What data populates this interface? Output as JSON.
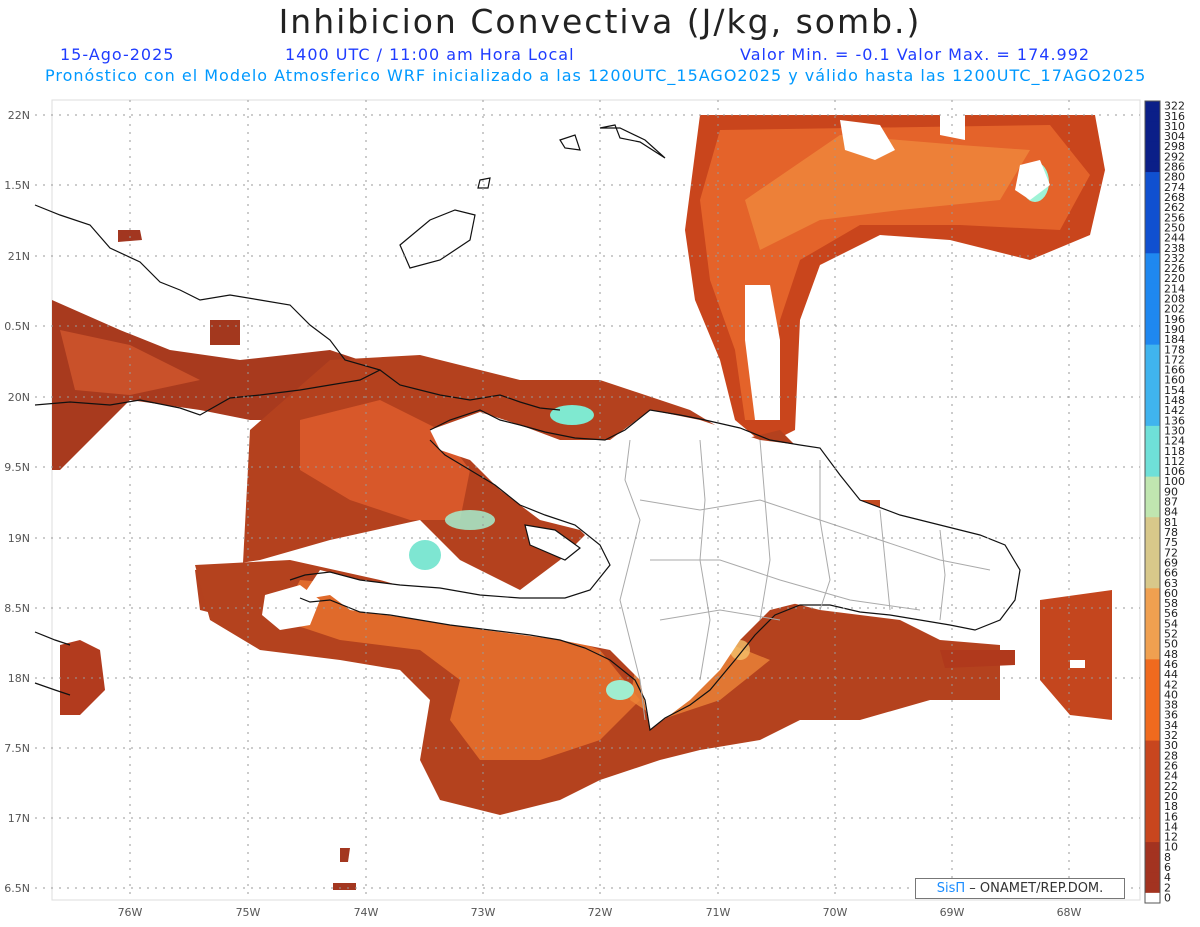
{
  "header": {
    "title": "Inhibicion Convectiva (J/kg, somb.)",
    "date": "15-Ago-2025",
    "time": "1400 UTC / 11:00 am Hora Local",
    "minmax": "Valor Min. = -0.1  Valor Max. = 174.992",
    "description": "Pronóstico con el Modelo Atmosferico WRF inicializado a las 1200UTC_15AGO2025 y válido hasta las  1200UTC_17AGO2025"
  },
  "map": {
    "lon_labels": [
      "76W",
      "75W",
      "74W",
      "73W",
      "72W",
      "71W",
      "70W",
      "69W",
      "68W"
    ],
    "lat_labels": [
      "22N",
      "1.5N",
      "21N",
      "0.5N",
      "20N",
      "9.5N",
      "19N",
      "8.5N",
      "18N",
      "7.5N",
      "17N",
      "6.5N"
    ]
  },
  "colorbar": {
    "levels": [
      "322",
      "316",
      "310",
      "304",
      "298",
      "292",
      "286",
      "280",
      "274",
      "268",
      "262",
      "256",
      "250",
      "244",
      "238",
      "232",
      "226",
      "220",
      "214",
      "208",
      "202",
      "196",
      "190",
      "184",
      "178",
      "172",
      "166",
      "160",
      "154",
      "148",
      "142",
      "136",
      "130",
      "124",
      "118",
      "112",
      "106",
      "100",
      "90",
      "87",
      "84",
      "81",
      "78",
      "75",
      "72",
      "69",
      "66",
      "63",
      "60",
      "58",
      "56",
      "54",
      "52",
      "50",
      "48",
      "46",
      "44",
      "42",
      "40",
      "38",
      "36",
      "34",
      "32",
      "30",
      "28",
      "26",
      "24",
      "22",
      "20",
      "18",
      "16",
      "14",
      "12",
      "10",
      "8",
      "6",
      "4",
      "2",
      "0"
    ]
  },
  "credit": {
    "brand": "SisΠ",
    "text": "– ONAMET/REP.DOM."
  }
}
